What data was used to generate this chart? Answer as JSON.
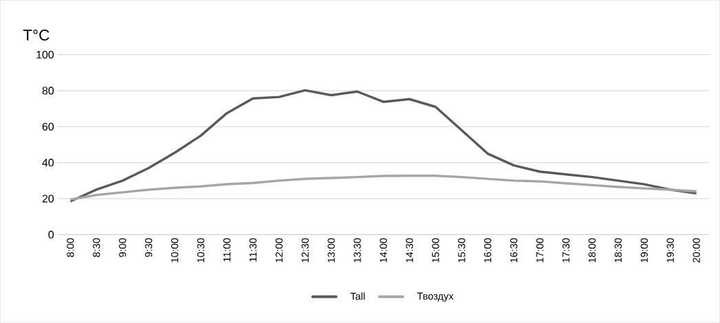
{
  "chart_data": {
    "type": "line",
    "ylabel": "T°C",
    "categories": [
      "8:00",
      "8:30",
      "9:00",
      "9:30",
      "10:00",
      "10:30",
      "11:00",
      "11:30",
      "12:00",
      "12:30",
      "13:00",
      "13:30",
      "14:00",
      "14:30",
      "15:00",
      "15:30",
      "16:00",
      "16:30",
      "17:00",
      "17:30",
      "18:00",
      "18:30",
      "19:00",
      "19:30",
      "20:00"
    ],
    "series": [
      {
        "name": "Tall",
        "color": "#595959",
        "values": [
          18.5,
          25,
          30,
          37,
          45.5,
          55,
          67.5,
          75.7,
          76.5,
          80.2,
          77.5,
          79.5,
          73.8,
          75.3,
          71,
          58,
          45,
          38.5,
          35,
          33.5,
          32,
          30,
          28,
          25,
          23
        ]
      },
      {
        "name": "Твоздух",
        "color": "#a6a6a6",
        "values": [
          19.5,
          22,
          23.5,
          25,
          26,
          26.8,
          28,
          28.7,
          30,
          31,
          31.5,
          32,
          32.6,
          32.7,
          32.7,
          32,
          31,
          30,
          29.6,
          28.5,
          27.5,
          26.5,
          25.7,
          25,
          24
        ]
      }
    ],
    "ylim": [
      0,
      100
    ],
    "yticks": [
      0,
      20,
      40,
      60,
      80,
      100
    ],
    "grid": "y",
    "legend": "bottom",
    "marker": "none",
    "line_style": "solid"
  }
}
